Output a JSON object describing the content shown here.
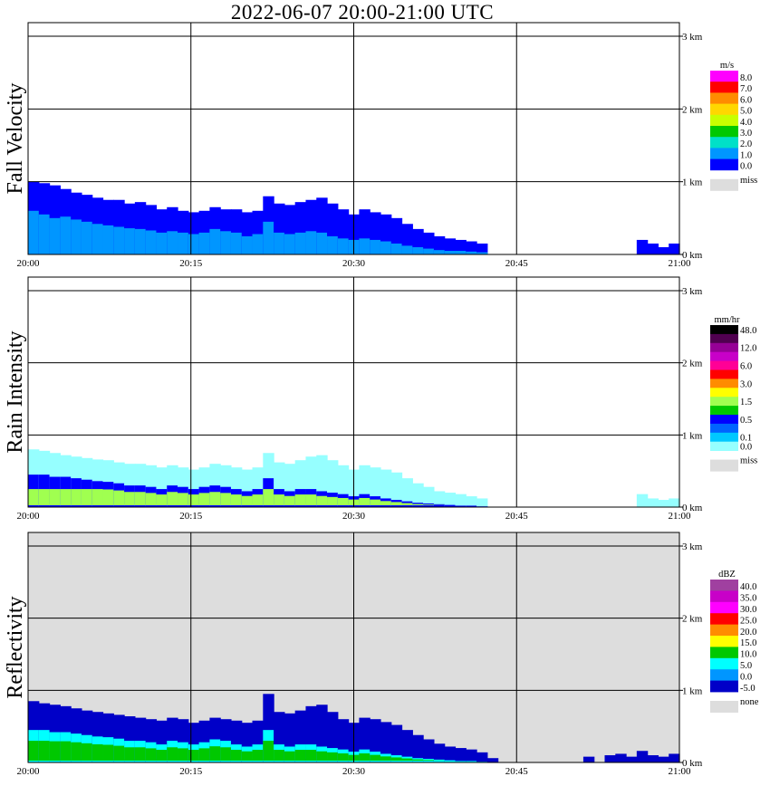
{
  "title": "2022-06-07   20:00-21:00 UTC",
  "chart_data": [
    {
      "type": "heatmap",
      "title": "Fall Velocity",
      "ylabel": "Fall Velocity",
      "xlabel": "",
      "x_ticks": [
        "20:00",
        "20:15",
        "20:30",
        "20:45",
        "21:00"
      ],
      "y_ticks": [
        "1 km",
        "2 km",
        "3 km",
        "0 km"
      ],
      "xlim": [
        "20:00",
        "21:00"
      ],
      "ylim_km": [
        0,
        3.2
      ],
      "grid": true,
      "background": "#ffffff",
      "colorbar": {
        "unit": "m/s",
        "levels": [
          "8.0",
          "7.0",
          "6.0",
          "5.0",
          "4.0",
          "3.0",
          "2.0",
          "1.0",
          "0.0"
        ],
        "colors": [
          "#ff00ff",
          "#ff0000",
          "#ff8c00",
          "#ffd700",
          "#c8ff00",
          "#00c800",
          "#00e0c8",
          "#0096ff",
          "#0000ff"
        ],
        "missing_label": "miss",
        "missing_color": "#dddddd"
      },
      "echo": {
        "top_km": [
          1.0,
          0.98,
          0.95,
          0.9,
          0.85,
          0.82,
          0.78,
          0.75,
          0.75,
          0.7,
          0.72,
          0.68,
          0.62,
          0.65,
          0.6,
          0.58,
          0.6,
          0.65,
          0.62,
          0.62,
          0.58,
          0.6,
          0.8,
          0.7,
          0.68,
          0.72,
          0.75,
          0.78,
          0.7,
          0.62,
          0.55,
          0.62,
          0.58,
          0.55,
          0.5,
          0.42,
          0.35,
          0.3,
          0.25,
          0.22,
          0.2,
          0.18,
          0.15,
          0,
          0,
          0,
          0,
          0,
          0,
          0,
          0,
          0,
          0,
          0,
          0,
          0,
          0,
          0.2,
          0.15,
          0.1,
          0.15
        ],
        "core_km": [
          0.6,
          0.55,
          0.5,
          0.52,
          0.48,
          0.45,
          0.42,
          0.4,
          0.38,
          0.36,
          0.35,
          0.33,
          0.3,
          0.32,
          0.3,
          0.28,
          0.3,
          0.35,
          0.32,
          0.3,
          0.25,
          0.28,
          0.45,
          0.3,
          0.28,
          0.3,
          0.32,
          0.3,
          0.25,
          0.22,
          0.2,
          0.22,
          0.2,
          0.18,
          0.15,
          0.12,
          0.1,
          0.08,
          0.06,
          0.05,
          0.05,
          0.04,
          0.03,
          0,
          0,
          0,
          0,
          0,
          0,
          0,
          0,
          0,
          0,
          0,
          0,
          0,
          0,
          0,
          0,
          0,
          0
        ],
        "outer_color": "#0000ff",
        "core_color": "#0096ff",
        "bright_color": "#00e0c8",
        "bright_km": 0
      }
    },
    {
      "type": "heatmap",
      "title": "Rain Intensity",
      "ylabel": "Rain Intensity",
      "xlabel": "",
      "x_ticks": [
        "20:00",
        "20:15",
        "20:30",
        "20:45",
        "21:00"
      ],
      "y_ticks": [
        "1 km",
        "2 km",
        "3 km",
        "0 km"
      ],
      "xlim": [
        "20:00",
        "21:00"
      ],
      "ylim_km": [
        0,
        3.2
      ],
      "grid": true,
      "background": "#ffffff",
      "colorbar": {
        "unit": "mm/hr",
        "levels": [
          "48.0",
          "",
          "12.0",
          "",
          "6.0",
          "",
          "3.0",
          "",
          "1.5",
          "",
          "0.5",
          "",
          "0.1",
          "0.0"
        ],
        "colors": [
          "#000000",
          "#500050",
          "#960096",
          "#c800c8",
          "#ff0096",
          "#ff0000",
          "#ff8c00",
          "#ffff00",
          "#a0ff50",
          "#00c800",
          "#0000ff",
          "#0064ff",
          "#00c8ff",
          "#96ffff"
        ],
        "missing_label": "miss",
        "missing_color": "#dddddd"
      },
      "echo": {
        "top_km": [
          0.8,
          0.78,
          0.75,
          0.72,
          0.7,
          0.68,
          0.66,
          0.65,
          0.62,
          0.6,
          0.6,
          0.58,
          0.55,
          0.58,
          0.55,
          0.52,
          0.55,
          0.6,
          0.58,
          0.55,
          0.52,
          0.55,
          0.75,
          0.62,
          0.6,
          0.65,
          0.7,
          0.72,
          0.65,
          0.58,
          0.52,
          0.58,
          0.55,
          0.52,
          0.48,
          0.4,
          0.33,
          0.28,
          0.22,
          0.2,
          0.18,
          0.15,
          0.12,
          0,
          0,
          0,
          0,
          0,
          0,
          0,
          0,
          0,
          0,
          0,
          0,
          0,
          0,
          0.18,
          0.12,
          0.1,
          0.12
        ],
        "core_km": [
          0.45,
          0.45,
          0.42,
          0.42,
          0.4,
          0.38,
          0.36,
          0.35,
          0.33,
          0.3,
          0.3,
          0.28,
          0.25,
          0.3,
          0.28,
          0.25,
          0.28,
          0.3,
          0.28,
          0.25,
          0.22,
          0.25,
          0.4,
          0.25,
          0.22,
          0.25,
          0.25,
          0.22,
          0.2,
          0.18,
          0.15,
          0.18,
          0.15,
          0.12,
          0.1,
          0.08,
          0.06,
          0.05,
          0.04,
          0.03,
          0.02,
          0.02,
          0.01,
          0,
          0,
          0,
          0,
          0,
          0,
          0,
          0,
          0,
          0,
          0,
          0,
          0,
          0,
          0,
          0,
          0,
          0
        ],
        "outer_color": "#96ffff",
        "core_color": "#0000ff",
        "bright_color": "#a0ff50",
        "bright_km": 0.25
      }
    },
    {
      "type": "heatmap",
      "title": "Reflectivity",
      "ylabel": "Reflectivity",
      "xlabel": "",
      "x_ticks": [
        "20:00",
        "20:15",
        "20:30",
        "20:45",
        "21:00"
      ],
      "y_ticks": [
        "1 km",
        "2 km",
        "3 km",
        "0 km"
      ],
      "xlim": [
        "20:00",
        "21:00"
      ],
      "ylim_km": [
        0,
        3.2
      ],
      "grid": true,
      "background": "#dddddd",
      "colorbar": {
        "unit": "dBZ",
        "levels": [
          "40.0",
          "35.0",
          "30.0",
          "25.0",
          "20.0",
          "15.0",
          "10.0",
          "5.0",
          "0.0",
          "-5.0"
        ],
        "colors": [
          "#a040a0",
          "#c800c8",
          "#ff00ff",
          "#ff0000",
          "#ff8c00",
          "#ffff00",
          "#00c800",
          "#00ffff",
          "#0096ff",
          "#0000c8"
        ],
        "missing_label": "none",
        "missing_color": "#dddddd"
      },
      "echo": {
        "top_km": [
          0.85,
          0.82,
          0.8,
          0.78,
          0.75,
          0.72,
          0.7,
          0.68,
          0.66,
          0.64,
          0.62,
          0.6,
          0.58,
          0.62,
          0.6,
          0.55,
          0.58,
          0.62,
          0.6,
          0.58,
          0.55,
          0.58,
          0.95,
          0.7,
          0.68,
          0.72,
          0.78,
          0.8,
          0.7,
          0.6,
          0.55,
          0.62,
          0.6,
          0.56,
          0.52,
          0.45,
          0.38,
          0.32,
          0.26,
          0.22,
          0.2,
          0.18,
          0.14,
          0.06,
          0,
          0,
          0,
          0,
          0,
          0,
          0,
          0,
          0.08,
          0,
          0.1,
          0.12,
          0.08,
          0.16,
          0.1,
          0.08,
          0.12
        ],
        "core_km": [
          0.45,
          0.45,
          0.42,
          0.42,
          0.4,
          0.38,
          0.36,
          0.35,
          0.33,
          0.3,
          0.3,
          0.28,
          0.25,
          0.3,
          0.28,
          0.25,
          0.28,
          0.32,
          0.3,
          0.25,
          0.22,
          0.25,
          0.45,
          0.25,
          0.22,
          0.25,
          0.25,
          0.22,
          0.2,
          0.18,
          0.15,
          0.18,
          0.15,
          0.12,
          0.1,
          0.08,
          0.06,
          0.05,
          0.04,
          0.03,
          0.02,
          0.02,
          0.01,
          0,
          0,
          0,
          0,
          0,
          0,
          0,
          0,
          0,
          0,
          0,
          0,
          0,
          0,
          0,
          0,
          0,
          0
        ],
        "outer_color": "#0000c8",
        "core_color": "#00ffff",
        "bright_color": "#00c800",
        "bright_km": 0.3
      }
    }
  ]
}
